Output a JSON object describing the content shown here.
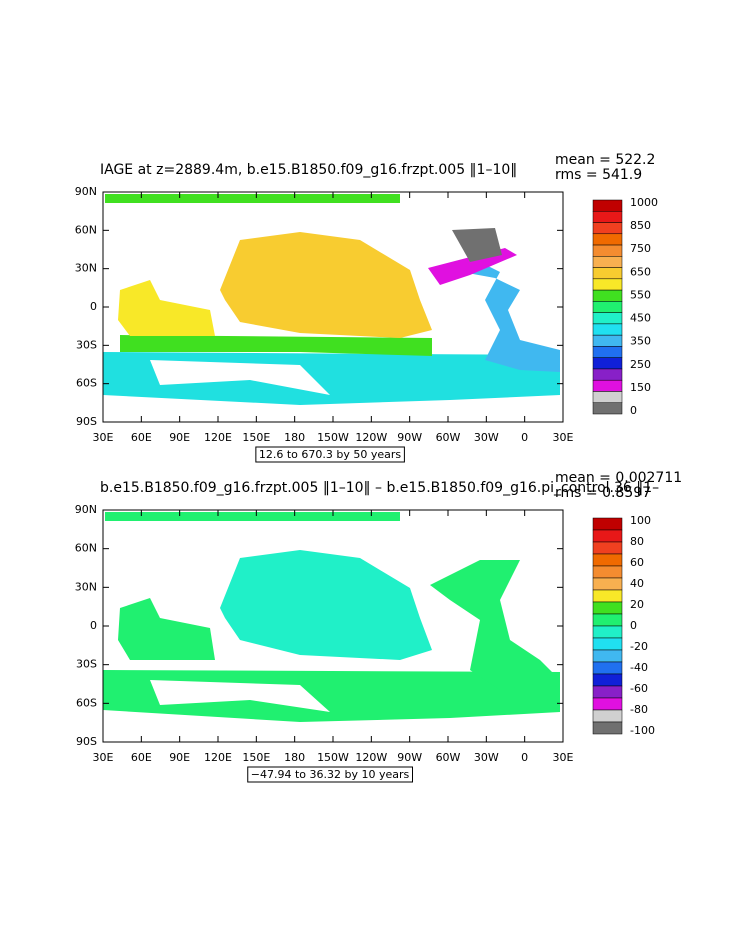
{
  "panels": [
    {
      "title": "IAGE at z=2889.4m, b.e15.B1850.f09_g16.frzpt.005 ‖1–10‖",
      "mean": "mean = 522.2",
      "rms": "rms = 541.9",
      "yticks": [
        "90N",
        "60N",
        "30N",
        "0",
        "30S",
        "60S",
        "90S"
      ],
      "xticks": [
        "30E",
        "60E",
        "90E",
        "120E",
        "150E",
        "180",
        "150W",
        "120W",
        "90W",
        "60W",
        "30W",
        "0",
        "30E"
      ],
      "colorbar": {
        "labels": [
          1000,
          850,
          750,
          650,
          550,
          450,
          350,
          250,
          150,
          0
        ],
        "colors": [
          "#c00000",
          "#e81818",
          "#f04020",
          "#f06a00",
          "#f48c30",
          "#f8b050",
          "#f8cc30",
          "#f8e828",
          "#40e020",
          "#20f070",
          "#20f0c8",
          "#20e0f0",
          "#40b8f0",
          "#2070f0",
          "#1020d8",
          "#8820c8",
          "#e010e0",
          "#d0d0d0",
          "#707070"
        ]
      },
      "range": "12.6 to 670.3 by 50 years"
    },
    {
      "title": "b.e15.B1850.f09_g16.frzpt.005 ‖1–10‖ – b.e15.B1850.f09_g16.pi_control.36 ‖1–",
      "mean": "mean = 0.002711",
      "rms": "rms = 0.8597",
      "yticks": [
        "90N",
        "60N",
        "30N",
        "0",
        "30S",
        "60S",
        "90S"
      ],
      "xticks": [
        "30E",
        "60E",
        "90E",
        "120E",
        "150E",
        "180",
        "150W",
        "120W",
        "90W",
        "60W",
        "30W",
        "0",
        "30E"
      ],
      "colorbar": {
        "labels": [
          100,
          80,
          60,
          40,
          20,
          0,
          -20,
          -40,
          -60,
          -80,
          -100
        ],
        "colors": [
          "#c00000",
          "#e81818",
          "#f04020",
          "#f06a00",
          "#f48c30",
          "#f8b050",
          "#f8e828",
          "#40e020",
          "#20f070",
          "#20f0c8",
          "#20e0f0",
          "#40b8f0",
          "#2070f0",
          "#1020d8",
          "#8820c8",
          "#e010e0",
          "#d0d0d0",
          "#707070"
        ]
      },
      "range": "−47.94 to 36.32 by 10 years"
    }
  ]
}
